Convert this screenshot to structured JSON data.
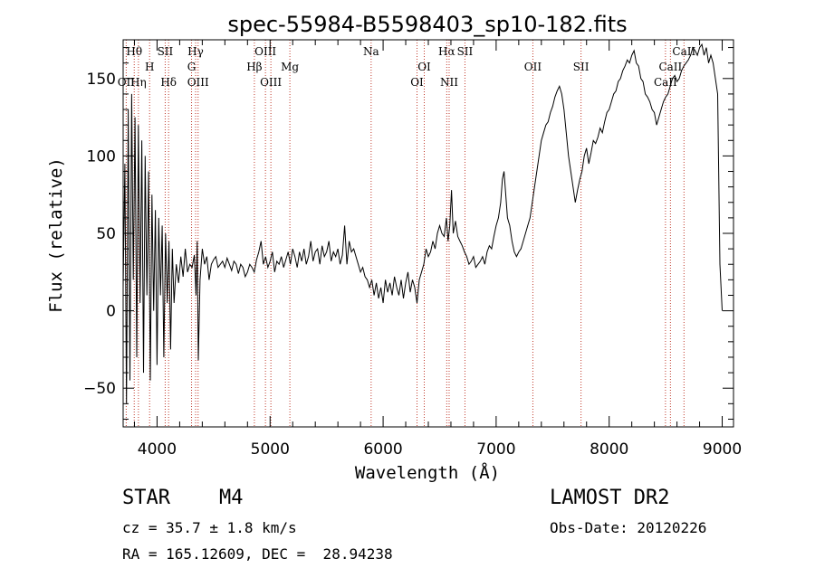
{
  "chart_data": {
    "type": "line",
    "title": "spec-55984-B5598403_sp10-182.fits",
    "xlabel": "Wavelength (Å)",
    "ylabel": "Flux (relative)",
    "xlim": [
      3700,
      9100
    ],
    "ylim": [
      -75,
      175
    ],
    "grid": false,
    "x_ticks": [
      4000,
      5000,
      6000,
      7000,
      8000,
      9000
    ],
    "x_tick_labels": [
      "4000",
      "5000",
      "6000",
      "7000",
      "8000",
      "9000"
    ],
    "y_ticks": [
      -50,
      0,
      50,
      100,
      150
    ],
    "y_tick_labels": [
      "−50",
      "0",
      "50",
      "100",
      "150"
    ],
    "series": [
      {
        "x": [
          3700,
          3715,
          3730,
          3745,
          3760,
          3775,
          3790,
          3805,
          3820,
          3835,
          3850,
          3865,
          3880,
          3895,
          3910,
          3925,
          3940,
          3955,
          3970,
          3985,
          4000,
          4015,
          4030,
          4045,
          4060,
          4075,
          4090,
          4105,
          4120,
          4135,
          4150,
          4170,
          4190,
          4210,
          4230,
          4250,
          4270,
          4290,
          4310,
          4330,
          4345,
          4355,
          4365,
          4380,
          4400,
          4420,
          4440,
          4460,
          4480,
          4500,
          4520,
          4540,
          4560,
          4580,
          4600,
          4620,
          4640,
          4660,
          4680,
          4700,
          4720,
          4740,
          4760,
          4780,
          4800,
          4820,
          4840,
          4860,
          4880,
          4900,
          4920,
          4940,
          4960,
          4980,
          5000,
          5020,
          5040,
          5060,
          5080,
          5100,
          5120,
          5140,
          5160,
          5180,
          5200,
          5220,
          5240,
          5260,
          5280,
          5300,
          5320,
          5340,
          5360,
          5380,
          5400,
          5420,
          5440,
          5460,
          5480,
          5500,
          5520,
          5540,
          5560,
          5580,
          5600,
          5620,
          5640,
          5660,
          5680,
          5700,
          5720,
          5740,
          5760,
          5780,
          5800,
          5820,
          5840,
          5860,
          5880,
          5900,
          5920,
          5940,
          5960,
          5980,
          6000,
          6020,
          6040,
          6060,
          6080,
          6100,
          6120,
          6140,
          6160,
          6180,
          6200,
          6220,
          6240,
          6260,
          6280,
          6300,
          6320,
          6340,
          6360,
          6380,
          6400,
          6420,
          6440,
          6460,
          6480,
          6500,
          6520,
          6540,
          6560,
          6575,
          6590,
          6605,
          6620,
          6640,
          6660,
          6680,
          6700,
          6720,
          6740,
          6760,
          6780,
          6800,
          6820,
          6840,
          6860,
          6880,
          6900,
          6920,
          6940,
          6960,
          6980,
          7000,
          7020,
          7040,
          7055,
          7070,
          7085,
          7100,
          7120,
          7140,
          7160,
          7180,
          7200,
          7220,
          7240,
          7260,
          7280,
          7300,
          7320,
          7340,
          7360,
          7380,
          7400,
          7420,
          7440,
          7460,
          7480,
          7500,
          7520,
          7540,
          7560,
          7580,
          7600,
          7620,
          7640,
          7660,
          7680,
          7700,
          7720,
          7740,
          7760,
          7780,
          7800,
          7820,
          7840,
          7860,
          7880,
          7900,
          7920,
          7940,
          7960,
          7980,
          8000,
          8020,
          8040,
          8060,
          8080,
          8100,
          8120,
          8140,
          8160,
          8180,
          8200,
          8220,
          8240,
          8260,
          8280,
          8300,
          8320,
          8340,
          8360,
          8380,
          8400,
          8420,
          8440,
          8460,
          8480,
          8500,
          8520,
          8540,
          8560,
          8580,
          8600,
          8620,
          8640,
          8660,
          8680,
          8700,
          8720,
          8740,
          8760,
          8780,
          8800,
          8820,
          8840,
          8860,
          8880,
          8900,
          8920,
          8940,
          8960,
          8980,
          9000
        ],
        "y": [
          15,
          95,
          -60,
          130,
          -45,
          140,
          20,
          125,
          -30,
          120,
          5,
          110,
          -40,
          100,
          10,
          90,
          -45,
          75,
          0,
          65,
          -35,
          60,
          10,
          55,
          -30,
          50,
          5,
          45,
          -25,
          40,
          5,
          30,
          18,
          35,
          22,
          40,
          25,
          30,
          28,
          36,
          10,
          45,
          -32,
          20,
          40,
          30,
          35,
          20,
          30,
          33,
          35,
          28,
          30,
          32,
          28,
          34,
          30,
          26,
          32,
          30,
          24,
          30,
          28,
          22,
          25,
          30,
          28,
          25,
          33,
          38,
          45,
          30,
          35,
          28,
          32,
          38,
          25,
          32,
          30,
          35,
          28,
          33,
          38,
          30,
          40,
          35,
          28,
          38,
          32,
          40,
          30,
          35,
          45,
          32,
          38,
          40,
          30,
          42,
          35,
          38,
          45,
          32,
          38,
          35,
          40,
          30,
          36,
          55,
          30,
          45,
          38,
          40,
          35,
          30,
          25,
          28,
          22,
          20,
          15,
          20,
          10,
          18,
          8,
          15,
          5,
          20,
          12,
          18,
          10,
          22,
          15,
          10,
          20,
          8,
          18,
          25,
          12,
          20,
          15,
          5,
          20,
          25,
          30,
          40,
          35,
          38,
          45,
          40,
          50,
          55,
          50,
          48,
          60,
          45,
          55,
          78,
          50,
          58,
          48,
          45,
          42,
          38,
          35,
          30,
          32,
          35,
          28,
          30,
          32,
          35,
          30,
          38,
          42,
          40,
          48,
          55,
          60,
          70,
          85,
          90,
          75,
          60,
          55,
          45,
          38,
          35,
          38,
          40,
          45,
          50,
          55,
          60,
          70,
          80,
          90,
          100,
          110,
          115,
          120,
          122,
          128,
          132,
          138,
          142,
          145,
          140,
          130,
          115,
          100,
          90,
          80,
          70,
          78,
          85,
          90,
          100,
          105,
          95,
          102,
          110,
          108,
          112,
          118,
          115,
          122,
          128,
          130,
          135,
          140,
          142,
          148,
          150,
          155,
          158,
          162,
          160,
          165,
          168,
          160,
          158,
          150,
          148,
          140,
          138,
          135,
          130,
          128,
          120,
          125,
          130,
          135,
          138,
          140,
          145,
          150,
          152,
          148,
          150,
          155,
          158,
          160,
          162,
          165,
          170,
          168,
          165,
          170,
          172,
          165,
          170,
          160,
          165,
          160,
          150,
          140,
          30,
          0
        ]
      }
    ],
    "line_markers": [
      {
        "label": "Hθ",
        "x": 3798,
        "row": 1
      },
      {
        "label": "Hη",
        "x": 3835,
        "row": 3
      },
      {
        "label": "OII",
        "x": 3727,
        "row": 3
      },
      {
        "label": "H",
        "x": 3934,
        "row": 2
      },
      {
        "label": "SII",
        "x": 4072,
        "row": 1
      },
      {
        "label": "Hδ",
        "x": 4102,
        "row": 3
      },
      {
        "label": "Hγ",
        "x": 4341,
        "row": 1
      },
      {
        "label": "G",
        "x": 4305,
        "row": 2
      },
      {
        "label": "OIII",
        "x": 4363,
        "row": 3
      },
      {
        "label": "OIII",
        "x": 4959,
        "row": 1
      },
      {
        "label": "Hβ",
        "x": 4861,
        "row": 2
      },
      {
        "label": "OIII",
        "x": 5007,
        "row": 3
      },
      {
        "label": "Mg",
        "x": 5175,
        "row": 2
      },
      {
        "label": "Na",
        "x": 5894,
        "row": 1
      },
      {
        "label": "OI",
        "x": 6364,
        "row": 2
      },
      {
        "label": "OI",
        "x": 6300,
        "row": 3
      },
      {
        "label": "Hα",
        "x": 6563,
        "row": 1
      },
      {
        "label": "SII",
        "x": 6724,
        "row": 1
      },
      {
        "label": "NII",
        "x": 6584,
        "row": 3
      },
      {
        "label": "OII",
        "x": 7325,
        "row": 2
      },
      {
        "label": "SII",
        "x": 7751,
        "row": 2
      },
      {
        "label": "CaII",
        "x": 8662,
        "row": 1
      },
      {
        "label": "CaII",
        "x": 8542,
        "row": 2
      },
      {
        "label": "CaII",
        "x": 8498,
        "row": 3
      }
    ]
  },
  "info": {
    "object_class": "STAR",
    "subclass": "M4",
    "survey": "LAMOST DR2",
    "redshift_line": "cz = 35.7 ± 1.8 km/s",
    "obs_date_line": "Obs-Date: 20120226",
    "coords_line": "RA = 165.12609, DEC =  28.94238"
  }
}
